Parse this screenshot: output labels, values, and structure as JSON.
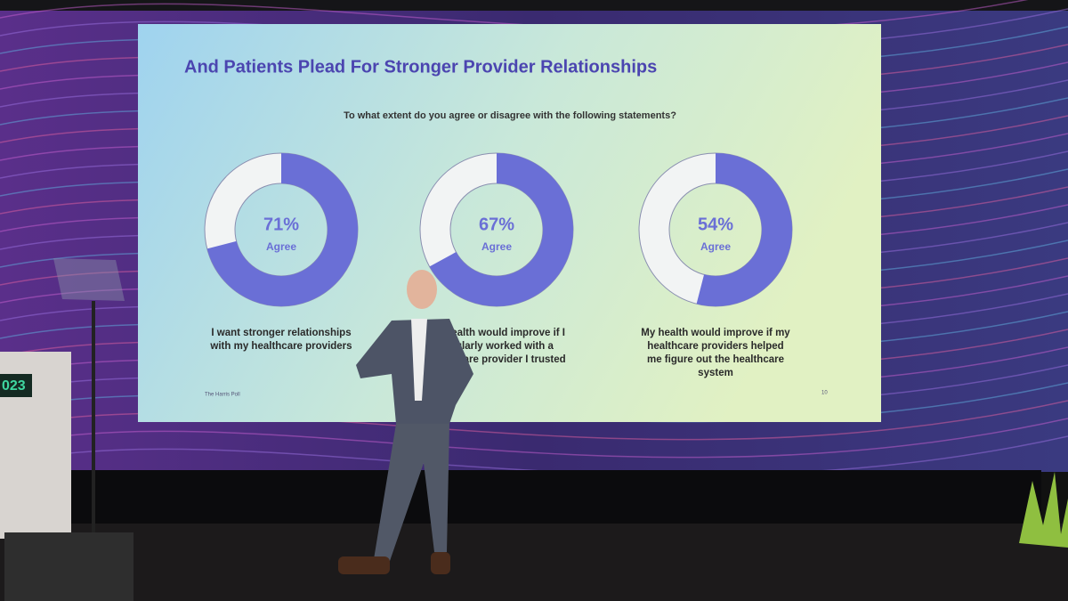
{
  "slide": {
    "title": "And Patients Plead For Stronger Provider Relationships",
    "question": "To what extent do you agree or disagree with the following statements?",
    "logo": "The Harris Poll",
    "page_number": "10"
  },
  "chart_data": [
    {
      "type": "donut",
      "values": [
        71
      ],
      "value_labels": [
        "71%"
      ],
      "label": "Agree",
      "color": "#6a6fd6",
      "caption": [
        "I want stronger relationships",
        "with my healthcare providers"
      ]
    },
    {
      "type": "donut",
      "values": [
        67
      ],
      "value_labels": [
        "67%"
      ],
      "label": "Agree",
      "color": "#6a6fd6",
      "caption": [
        "My health would improve if I",
        "regularly worked with a",
        "healthcare provider I trusted"
      ]
    },
    {
      "type": "donut",
      "values": [
        54
      ],
      "value_labels": [
        "54%"
      ],
      "label": "Agree",
      "color": "#6a6fd6",
      "caption": [
        "My health would improve if my",
        "healthcare providers helped",
        "me figure out the  healthcare",
        "system"
      ]
    }
  ],
  "podium": {
    "sign": "023"
  }
}
